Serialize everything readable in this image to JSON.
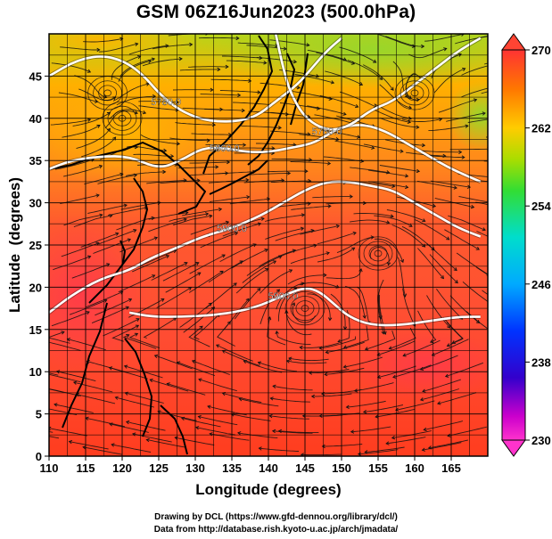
{
  "title": "GSM 06Z16Jun2023 (500.0hPa)",
  "credits": {
    "drawing": "Drawing by DCL (https://www.gfd-dennou.org/library/dcl/)",
    "source": "Data from http://database.rish.kyoto-u.ac.jp/arch/jmadata/"
  },
  "chart_data": {
    "type": "heatmap",
    "title": "GSM 06Z16Jun2023 (500.0hPa)",
    "xlabel": "Longitude (degrees)",
    "ylabel": "Latitude  (degrees)",
    "xlim": [
      110,
      170
    ],
    "ylim": [
      0,
      50
    ],
    "x_ticks": [
      "110",
      "115",
      "120",
      "125",
      "130",
      "135",
      "140",
      "145",
      "150",
      "155",
      "160",
      "165"
    ],
    "y_ticks": [
      "0",
      "5",
      "10",
      "15",
      "20",
      "25",
      "30",
      "35",
      "40",
      "45"
    ],
    "colorbar": {
      "range": [
        230,
        270
      ],
      "ticks": [
        "270",
        "262",
        "254",
        "246",
        "238",
        "230"
      ]
    },
    "contours": [
      {
        "label": "5900.0",
        "points": [
          [
            110,
            17
          ],
          [
            113,
            19
          ],
          [
            117,
            21
          ],
          [
            121,
            22
          ],
          [
            124,
            23.5
          ],
          [
            127,
            24.5
          ],
          [
            131,
            26
          ],
          [
            135,
            27
          ],
          [
            139,
            28.5
          ],
          [
            142,
            30
          ],
          [
            145,
            31.5
          ],
          [
            148,
            32.5
          ],
          [
            151,
            32.5
          ],
          [
            154,
            32
          ],
          [
            157,
            31.5
          ],
          [
            160,
            30
          ],
          [
            163,
            28.5
          ],
          [
            166,
            27
          ],
          [
            169,
            26
          ]
        ]
      },
      {
        "label": "5900.0",
        "points": [
          [
            121,
            17
          ],
          [
            124,
            16.5
          ],
          [
            128,
            16.5
          ],
          [
            133,
            16.7
          ],
          [
            138,
            17.5
          ],
          [
            142,
            19
          ],
          [
            145,
            20
          ],
          [
            147,
            19.5
          ],
          [
            149,
            18
          ],
          [
            151,
            16.5
          ],
          [
            154,
            15.5
          ],
          [
            158,
            15.5
          ],
          [
            162,
            16
          ],
          [
            166,
            16.5
          ],
          [
            169,
            16.5
          ]
        ]
      },
      {
        "label": "5860.0",
        "points": [
          [
            110,
            34
          ],
          [
            113,
            35
          ],
          [
            117,
            35.5
          ],
          [
            121,
            35.5
          ],
          [
            125,
            34
          ],
          [
            128,
            35
          ],
          [
            131,
            36.5
          ],
          [
            134,
            36.5
          ],
          [
            137,
            36
          ],
          [
            140,
            36
          ],
          [
            143,
            36.5
          ],
          [
            146,
            37
          ],
          [
            148,
            38
          ],
          [
            150,
            39
          ],
          [
            153,
            39.3
          ],
          [
            156,
            38.5
          ],
          [
            159,
            37
          ],
          [
            162,
            35.5
          ],
          [
            165,
            34
          ],
          [
            169,
            32.5
          ]
        ]
      },
      {
        "label": "5780.0",
        "points": [
          [
            110,
            45
          ],
          [
            114,
            47
          ],
          [
            118,
            47.5
          ],
          [
            122,
            46
          ],
          [
            126,
            42
          ],
          [
            130,
            40
          ],
          [
            134,
            39.5
          ],
          [
            138,
            40
          ],
          [
            141,
            42
          ],
          [
            144,
            44
          ],
          [
            146,
            46
          ],
          [
            148,
            48
          ],
          [
            150,
            49.5
          ]
        ]
      },
      {
        "label": "5780.0",
        "points": [
          [
            141,
            50
          ],
          [
            142,
            46
          ],
          [
            143,
            43
          ],
          [
            145,
            40
          ],
          [
            148,
            38.5
          ],
          [
            151,
            39
          ],
          [
            154,
            41
          ],
          [
            157,
            42
          ],
          [
            160,
            44
          ],
          [
            163,
            46
          ],
          [
            166,
            48
          ],
          [
            169,
            49.5
          ]
        ]
      }
    ],
    "cyclones": [
      [
        145,
        17.5
      ],
      [
        155,
        24
      ],
      [
        120,
        40
      ]
    ],
    "anticyclones": [
      [
        118,
        43
      ],
      [
        160,
        43
      ]
    ]
  }
}
